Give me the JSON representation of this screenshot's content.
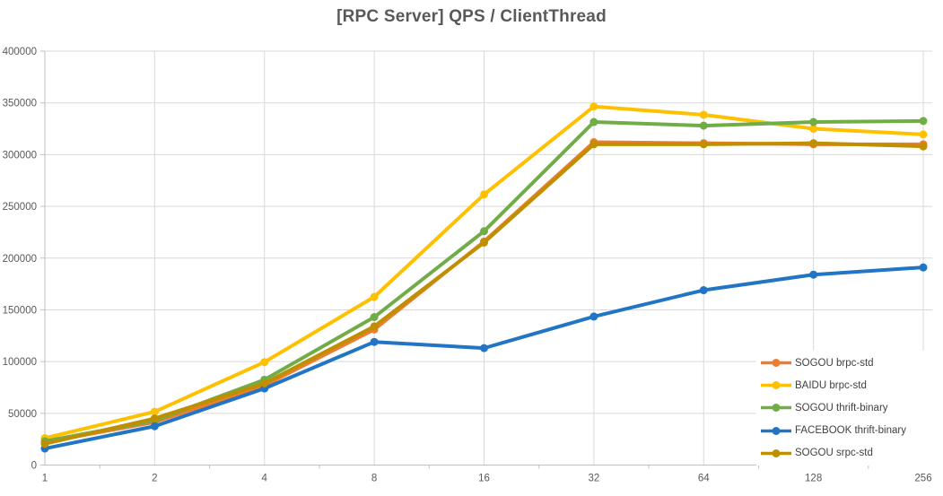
{
  "chart_data": {
    "type": "line",
    "title": "[RPC Server] QPS / ClientThread",
    "xlabel": "",
    "ylabel": "",
    "categories": [
      "1",
      "2",
      "4",
      "8",
      "16",
      "32",
      "64",
      "128",
      "256"
    ],
    "ylim": [
      0,
      400000
    ],
    "ytick_step": 50000,
    "ytick_labels": [
      "0",
      "50000",
      "100000",
      "150000",
      "200000",
      "250000",
      "300000",
      "350000",
      "400000"
    ],
    "grid": true,
    "legend_position": "inside-bottom-right",
    "series": [
      {
        "name": "SOGOU brpc-std",
        "color": "#ED7D31",
        "values": [
          22000,
          41500,
          77000,
          131000,
          216000,
          312000,
          311000,
          310000,
          310000
        ]
      },
      {
        "name": "BAIDU brpc-std",
        "color": "#FFC000",
        "values": [
          26000,
          51500,
          99500,
          162500,
          261500,
          346500,
          338500,
          325000,
          319500
        ]
      },
      {
        "name": "SOGOU thrift-binary",
        "color": "#70AD47",
        "values": [
          23000,
          43000,
          82500,
          143000,
          226000,
          331500,
          328000,
          331500,
          332500
        ]
      },
      {
        "name": "FACEBOOK thrift-binary",
        "color": "#2175C4",
        "values": [
          16000,
          37500,
          74000,
          119000,
          113000,
          143500,
          169000,
          184000,
          191000
        ]
      },
      {
        "name": "SOGOU srpc-std",
        "color": "#BF8F00",
        "values": [
          20500,
          45000,
          79000,
          134000,
          215000,
          310000,
          310000,
          311000,
          308000
        ]
      }
    ]
  },
  "colors": {
    "title_text": "#595959",
    "tick_text": "#595959",
    "legend_text": "#404040",
    "gridline": "#D9D9D9",
    "axis_line": "#BFBFBF",
    "background": "#FFFFFF"
  }
}
